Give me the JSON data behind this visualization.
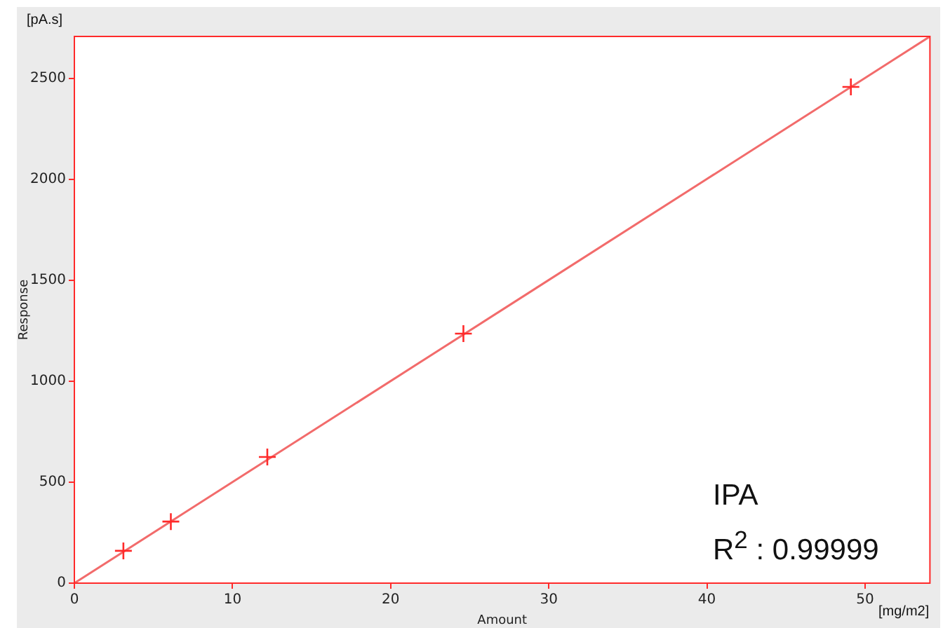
{
  "chart_data": {
    "type": "scatter",
    "xlabel": "Amount",
    "ylabel": "Response",
    "annotations": [
      "[pA.s]",
      "[mg/m2]",
      "IPA",
      "R$^{2}$ : 0.99999"
    ],
    "xlim": [
      0,
      54.1
    ],
    "xticks": [
      0,
      10,
      20,
      30,
      40,
      50
    ],
    "ylim": [
      0,
      2708
    ],
    "yticks": [
      0,
      500,
      1000,
      1500,
      2000,
      2500
    ],
    "grid": false,
    "legend": false,
    "series": [
      {
        "color": "#ff2a2a",
        "marker": "cross",
        "x": [
          3.1,
          6.1,
          12.2,
          24.6,
          49.1
        ],
        "values": [
          160,
          305,
          625,
          1236,
          2458
        ]
      },
      {
        "type": "line",
        "color": "#f26b6b",
        "x": [
          0,
          54.1
        ],
        "values": [
          0,
          2708
        ],
        "line_style": "solid",
        "marker": "none"
      }
    ]
  }
}
